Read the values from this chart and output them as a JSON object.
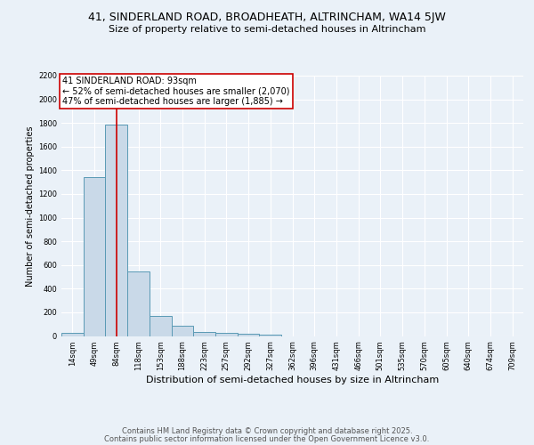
{
  "title1": "41, SINDERLAND ROAD, BROADHEATH, ALTRINCHAM, WA14 5JW",
  "title2": "Size of property relative to semi-detached houses in Altrincham",
  "xlabel": "Distribution of semi-detached houses by size in Altrincham",
  "ylabel": "Number of semi-detached properties",
  "categories": [
    "14sqm",
    "49sqm",
    "84sqm",
    "118sqm",
    "153sqm",
    "188sqm",
    "223sqm",
    "257sqm",
    "292sqm",
    "327sqm",
    "362sqm",
    "396sqm",
    "431sqm",
    "466sqm",
    "501sqm",
    "535sqm",
    "570sqm",
    "605sqm",
    "640sqm",
    "674sqm",
    "709sqm"
  ],
  "values": [
    30,
    1340,
    1790,
    545,
    170,
    85,
    35,
    25,
    20,
    10,
    0,
    0,
    0,
    0,
    0,
    0,
    0,
    0,
    0,
    0,
    0
  ],
  "bar_color": "#c9d9e8",
  "bar_edge_color": "#5a9ab5",
  "vline_color": "#cc0000",
  "vline_x_index": 2,
  "annotation_title": "41 SINDERLAND ROAD: 93sqm",
  "annotation_line1": "← 52% of semi-detached houses are smaller (2,070)",
  "annotation_line2": "47% of semi-detached houses are larger (1,885) →",
  "annotation_box_color": "#cc0000",
  "ylim": [
    0,
    2200
  ],
  "yticks": [
    0,
    200,
    400,
    600,
    800,
    1000,
    1200,
    1400,
    1600,
    1800,
    2000,
    2200
  ],
  "footer1": "Contains HM Land Registry data © Crown copyright and database right 2025.",
  "footer2": "Contains public sector information licensed under the Open Government Licence v3.0.",
  "bg_color": "#eaf1f8",
  "plot_bg_color": "#eaf1f8",
  "title1_fontsize": 9,
  "title2_fontsize": 8,
  "ylabel_fontsize": 7,
  "xlabel_fontsize": 8,
  "tick_fontsize": 6,
  "footer_fontsize": 6,
  "ann_fontsize": 7
}
